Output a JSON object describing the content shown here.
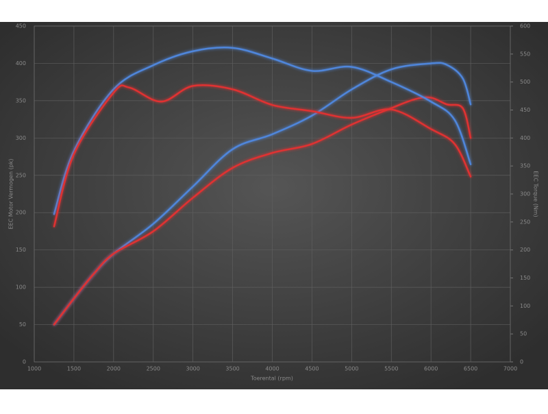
{
  "chart_data": {
    "type": "line",
    "xlabel": "Toerental (rpm)",
    "ylabel": "EEC Motor Vermogen (pk)",
    "y2label": "EEC Torque (Nm)",
    "xlim": [
      1000,
      7000
    ],
    "xticks": [
      1000,
      1500,
      2000,
      2500,
      3000,
      3500,
      4000,
      4500,
      5000,
      5500,
      6000,
      6500,
      7000
    ],
    "ylim": [
      0,
      450
    ],
    "yticks": [
      0,
      50,
      100,
      150,
      200,
      250,
      300,
      350,
      400,
      450
    ],
    "y2lim": [
      0,
      600
    ],
    "y2ticks": [
      0,
      50,
      100,
      150,
      200,
      250,
      300,
      350,
      400,
      450,
      500,
      550,
      600
    ],
    "grid": true,
    "series": [
      {
        "color": "#4f86db",
        "x": [
          1250,
          1500,
          1750,
          2000,
          2500,
          3000,
          3500,
          4000,
          4500,
          5000,
          5500,
          6000,
          6200,
          6400,
          6500
        ],
        "values": [
          50,
          85,
          118,
          145,
          185,
          235,
          285,
          305,
          330,
          365,
          392,
          400,
          398,
          380,
          345
        ]
      },
      {
        "color": "#e03030",
        "x": [
          1250,
          1500,
          1750,
          2000,
          2500,
          3000,
          3500,
          4000,
          4500,
          5000,
          5500,
          5800,
          6000,
          6200,
          6400,
          6500
        ],
        "values": [
          50,
          85,
          118,
          145,
          175,
          220,
          260,
          280,
          292,
          318,
          340,
          352,
          354,
          345,
          340,
          300
        ]
      },
      {
        "color": "#4f86db",
        "axis": "y2",
        "x": [
          1250,
          1500,
          2000,
          2500,
          3000,
          3500,
          4000,
          4500,
          5000,
          5500,
          6000,
          6300,
          6500
        ],
        "values": [
          264,
          377,
          487,
          530,
          555,
          561,
          542,
          520,
          527,
          500,
          465,
          432,
          353
        ]
      },
      {
        "color": "#e03030",
        "axis": "y2",
        "x": [
          1250,
          1500,
          2000,
          2200,
          2600,
          3000,
          3500,
          4000,
          4500,
          5000,
          5500,
          6000,
          6300,
          6500
        ],
        "values": [
          242,
          371,
          481,
          490,
          465,
          493,
          487,
          459,
          448,
          436,
          451,
          416,
          389,
          331
        ]
      }
    ]
  }
}
